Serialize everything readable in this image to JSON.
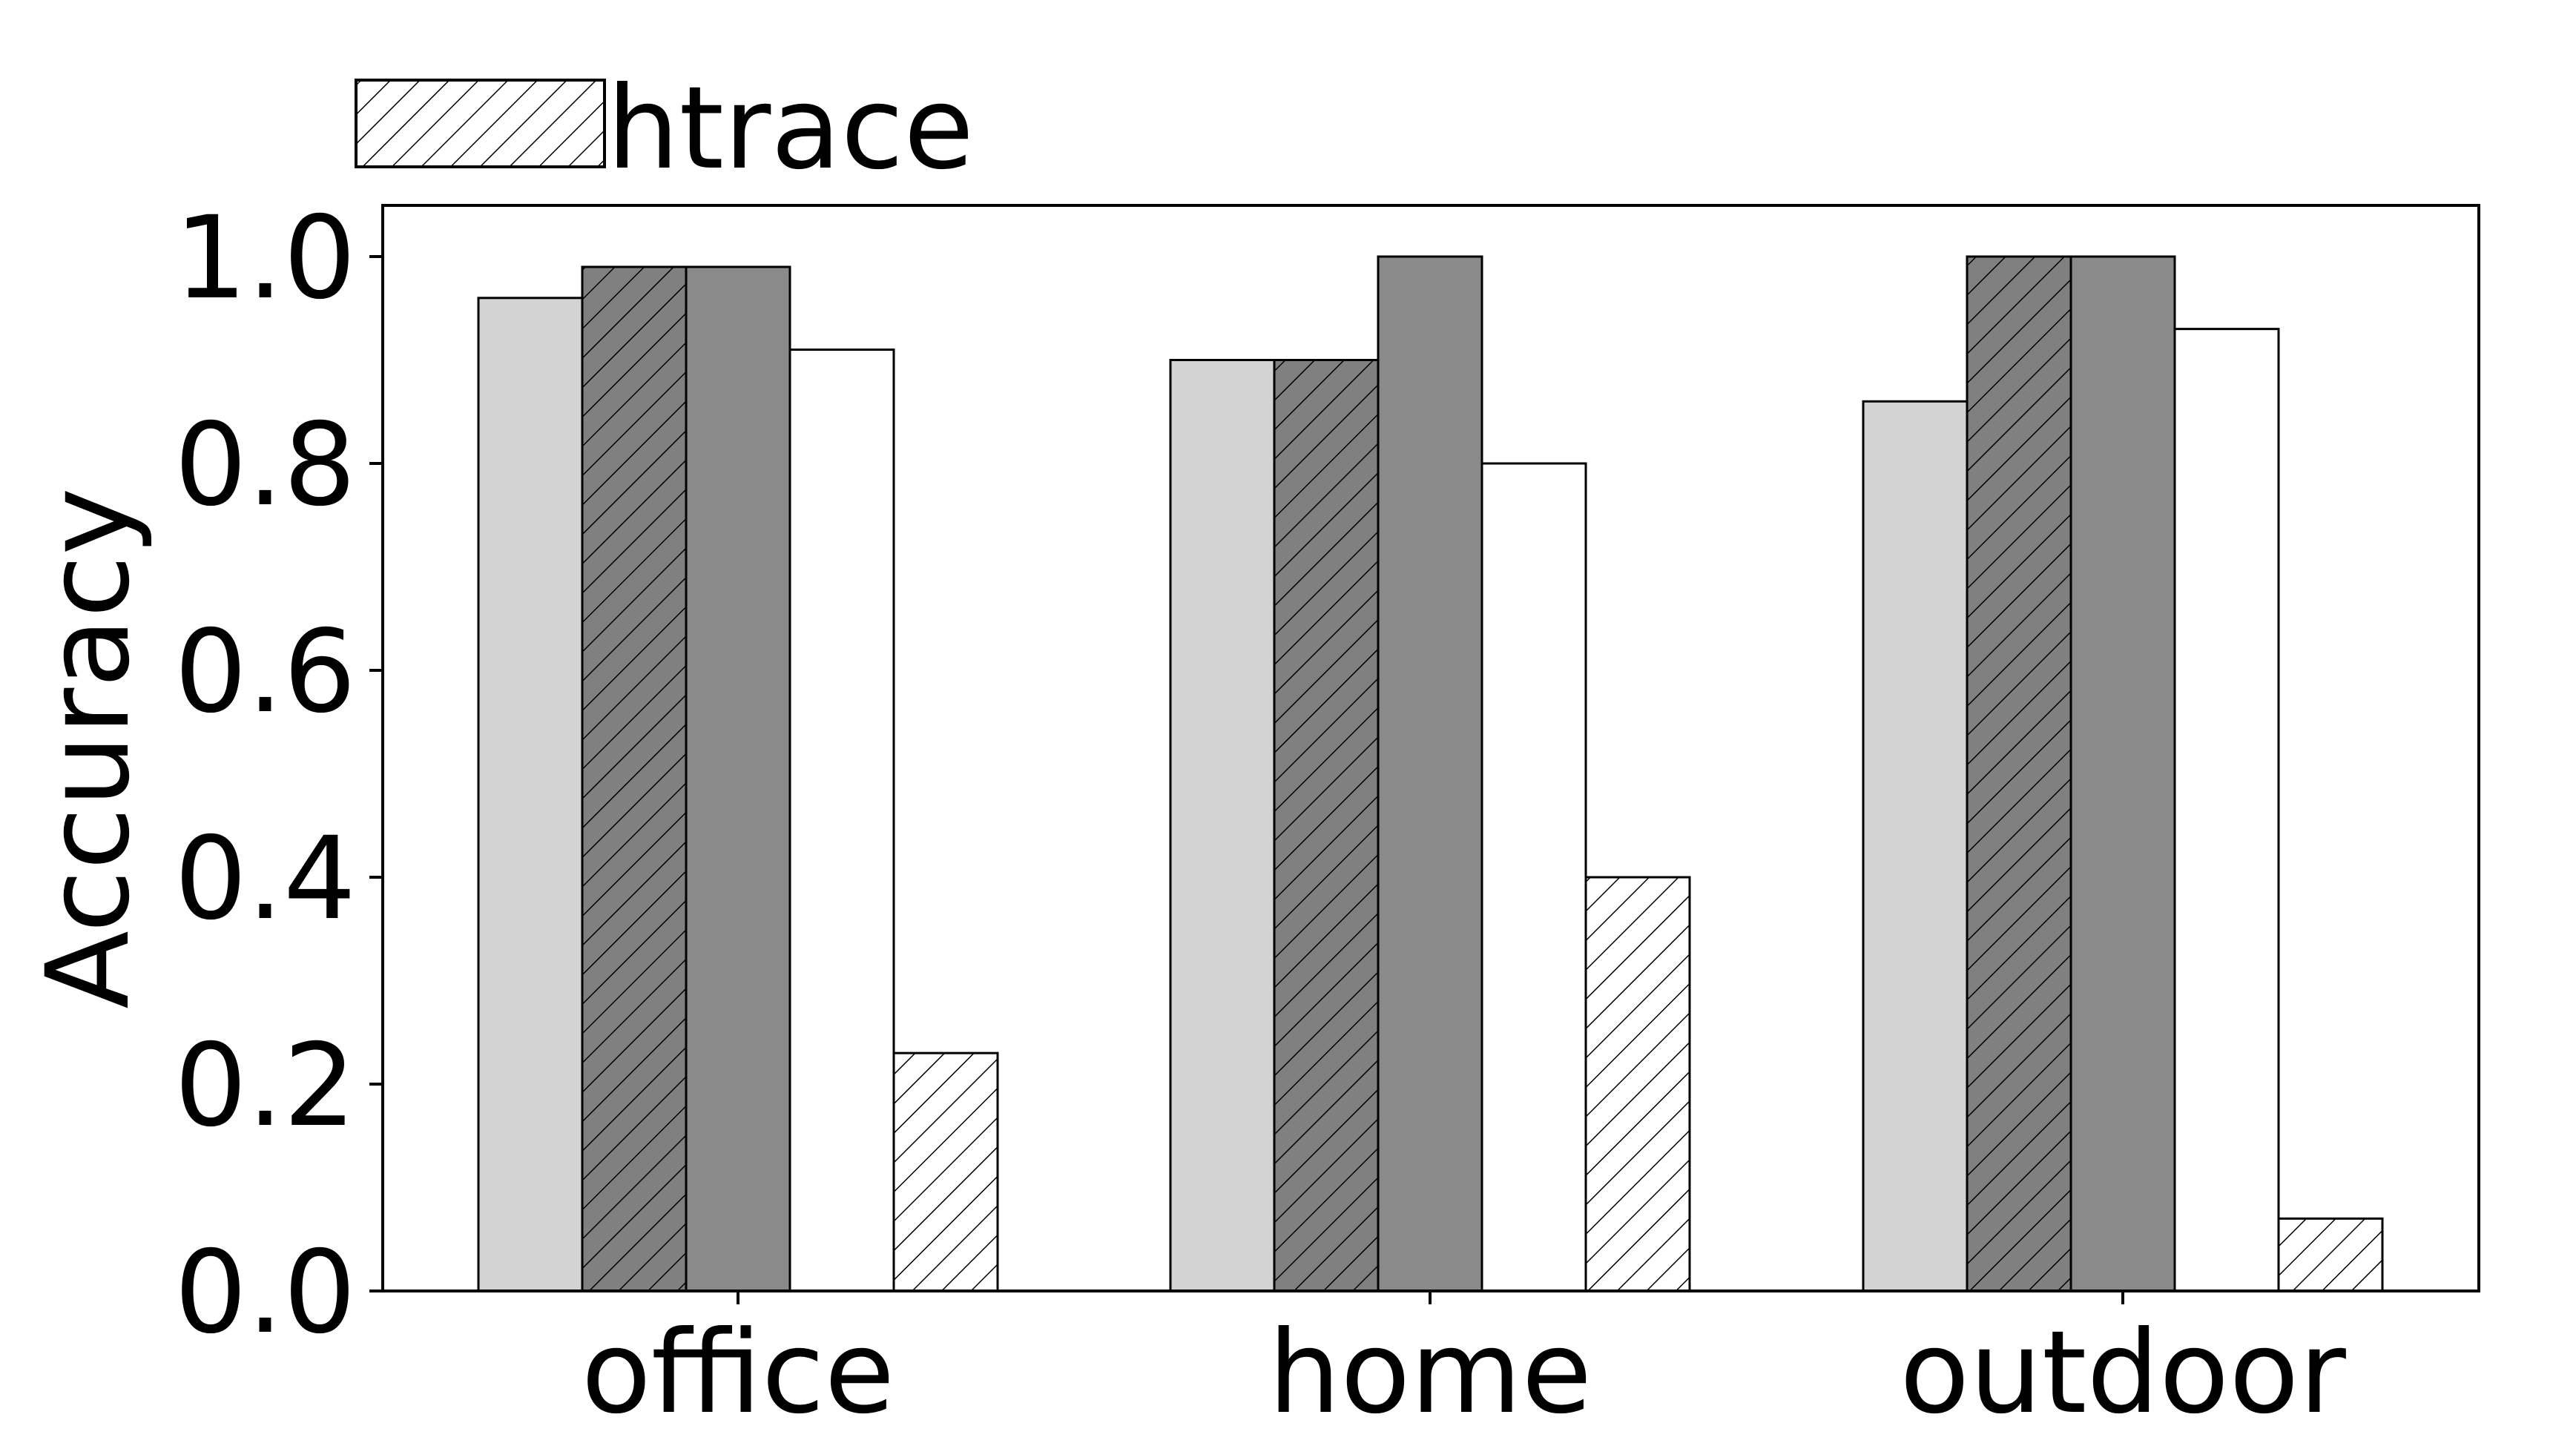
{
  "chart_data": {
    "type": "bar",
    "title": "",
    "xlabel": "",
    "ylabel": "Accuracy",
    "ylim": [
      0,
      1.05
    ],
    "yticks": [
      "0.0",
      "0.2",
      "0.4",
      "0.6",
      "0.8",
      "1.0"
    ],
    "categories": [
      "office",
      "home",
      "outdoor"
    ],
    "grid": false,
    "legend": {
      "placement": "top-left",
      "visible_entries": [
        "htrace"
      ]
    },
    "series": [
      {
        "values": [
          0.96,
          0.9,
          0.86
        ],
        "color": "#d3d3d3",
        "hatch": false
      },
      {
        "values": [
          0.99,
          0.9,
          1.0
        ],
        "color": "#808080",
        "hatch": true
      },
      {
        "values": [
          0.99,
          1.0,
          1.0
        ],
        "color": "#8a8a8a",
        "hatch": false
      },
      {
        "values": [
          0.91,
          0.8,
          0.93
        ],
        "color": "#ffffff",
        "hatch": false
      },
      {
        "name": "htrace",
        "values": [
          0.23,
          0.4,
          0.07
        ],
        "color": "#ffffff",
        "hatch": true
      }
    ]
  }
}
